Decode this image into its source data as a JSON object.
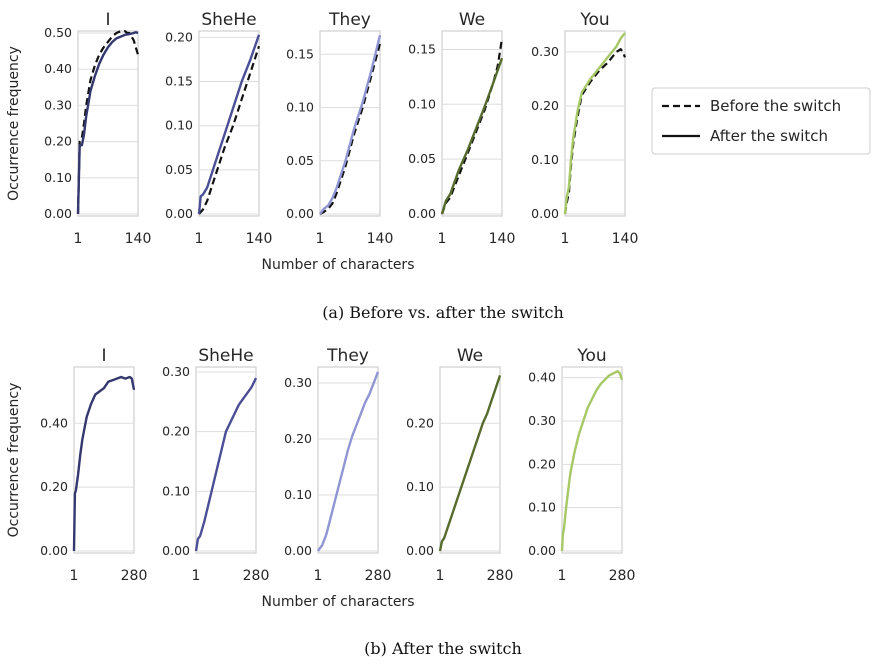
{
  "figure": {
    "captions": [
      "(a) Before vs. after the switch",
      "(b) After the switch"
    ]
  },
  "legend": {
    "entries": [
      {
        "label": "Before the switch",
        "style": "dashed"
      },
      {
        "label": "After the switch",
        "style": "solid"
      }
    ]
  },
  "colors": {
    "I": "#34386f",
    "SheHe": "#4a4f96",
    "They": "#8f96d3",
    "We": "#566b2d",
    "You": "#a6c866",
    "before": "#111111"
  },
  "chart_data": [
    {
      "type": "line",
      "subfigure": "a",
      "ylabel": "Occurrence frequency",
      "xlabel": "Number of characters",
      "grid": "horizontal",
      "legend": "right",
      "panels": [
        {
          "title": "I",
          "xlim": [
            1,
            140
          ],
          "ylim": [
            0,
            0.5
          ],
          "xticks": [
            "1",
            "140"
          ],
          "yticks": [
            "0.00",
            "0.10",
            "0.20",
            "0.30",
            "0.40",
            "0.50"
          ],
          "series": [
            {
              "name": "Before the switch",
              "x": [
                1,
                5,
                10,
                15,
                20,
                30,
                40,
                50,
                60,
                70,
                80,
                90,
                100,
                110,
                115,
                120,
                125,
                130,
                135,
                140
              ],
              "y": [
                0.0,
                0.2,
                0.21,
                0.25,
                0.3,
                0.37,
                0.41,
                0.44,
                0.46,
                0.475,
                0.49,
                0.5,
                0.505,
                0.505,
                0.5,
                0.5,
                0.49,
                0.48,
                0.46,
                0.44
              ]
            },
            {
              "name": "After the switch",
              "x": [
                1,
                5,
                10,
                15,
                20,
                30,
                40,
                50,
                60,
                70,
                80,
                90,
                100,
                110,
                120,
                130,
                135,
                140
              ],
              "y": [
                0.0,
                0.19,
                0.19,
                0.22,
                0.27,
                0.34,
                0.38,
                0.415,
                0.44,
                0.46,
                0.475,
                0.485,
                0.49,
                0.495,
                0.497,
                0.5,
                0.502,
                0.5
              ]
            }
          ]
        },
        {
          "title": "SheHe",
          "xlim": [
            1,
            140
          ],
          "ylim": [
            0,
            0.205
          ],
          "xticks": [
            "1",
            "140"
          ],
          "yticks": [
            "0.00",
            "0.05",
            "0.10",
            "0.15",
            "0.20"
          ],
          "series": [
            {
              "name": "Before the switch",
              "x": [
                1,
                10,
                20,
                30,
                40,
                60,
                80,
                100,
                120,
                140
              ],
              "y": [
                0.0,
                0.005,
                0.015,
                0.03,
                0.045,
                0.075,
                0.1,
                0.13,
                0.16,
                0.19
              ]
            },
            {
              "name": "After the switch",
              "x": [
                1,
                5,
                10,
                20,
                30,
                40,
                60,
                80,
                100,
                120,
                140
              ],
              "y": [
                0.0,
                0.02,
                0.022,
                0.03,
                0.045,
                0.06,
                0.09,
                0.12,
                0.15,
                0.175,
                0.203
              ]
            }
          ]
        },
        {
          "title": "They",
          "xlim": [
            1,
            140
          ],
          "ylim": [
            0,
            0.17
          ],
          "xticks": [
            "1",
            "140"
          ],
          "yticks": [
            "0.00",
            "0.05",
            "0.10",
            "0.15"
          ],
          "series": [
            {
              "name": "Before the switch",
              "x": [
                1,
                10,
                20,
                30,
                40,
                60,
                80,
                100,
                120,
                140
              ],
              "y": [
                0.0,
                0.002,
                0.005,
                0.01,
                0.02,
                0.045,
                0.075,
                0.1,
                0.13,
                0.16
              ]
            },
            {
              "name": "After the switch",
              "x": [
                1,
                10,
                20,
                30,
                40,
                60,
                80,
                100,
                120,
                140
              ],
              "y": [
                0.0,
                0.005,
                0.008,
                0.015,
                0.025,
                0.05,
                0.08,
                0.105,
                0.135,
                0.168
              ]
            }
          ]
        },
        {
          "title": "We",
          "xlim": [
            1,
            140
          ],
          "ylim": [
            0,
            0.165
          ],
          "xticks": [
            "1",
            "140"
          ],
          "yticks": [
            "0.00",
            "0.05",
            "0.10",
            "0.15"
          ],
          "series": [
            {
              "name": "Before the switch",
              "x": [
                1,
                10,
                20,
                40,
                60,
                80,
                100,
                120,
                130,
                140
              ],
              "y": [
                0.0,
                0.01,
                0.015,
                0.035,
                0.055,
                0.075,
                0.095,
                0.12,
                0.135,
                0.16
              ]
            },
            {
              "name": "After the switch",
              "x": [
                1,
                10,
                20,
                40,
                60,
                80,
                100,
                120,
                140
              ],
              "y": [
                0.0,
                0.012,
                0.018,
                0.04,
                0.058,
                0.078,
                0.098,
                0.12,
                0.142
              ]
            }
          ]
        },
        {
          "title": "You",
          "xlim": [
            1,
            140
          ],
          "ylim": [
            0,
            0.335
          ],
          "xticks": [
            "1",
            "140"
          ],
          "yticks": [
            "0.00",
            "0.10",
            "0.20",
            "0.30"
          ],
          "series": [
            {
              "name": "Before the switch",
              "x": [
                1,
                5,
                10,
                15,
                20,
                30,
                40,
                60,
                80,
                100,
                120,
                130,
                135,
                140
              ],
              "y": [
                0.0,
                0.02,
                0.04,
                0.09,
                0.13,
                0.18,
                0.22,
                0.245,
                0.265,
                0.28,
                0.3,
                0.305,
                0.3,
                0.29
              ]
            },
            {
              "name": "After the switch",
              "x": [
                1,
                5,
                10,
                15,
                20,
                30,
                40,
                60,
                80,
                100,
                120,
                130,
                140
              ],
              "y": [
                0.0,
                0.03,
                0.05,
                0.1,
                0.14,
                0.19,
                0.225,
                0.25,
                0.27,
                0.29,
                0.31,
                0.325,
                0.335
              ]
            }
          ]
        }
      ]
    },
    {
      "type": "line",
      "subfigure": "b",
      "ylabel": "Occurrence frequency",
      "xlabel": "Number of characters",
      "grid": "horizontal",
      "panels": [
        {
          "title": "I",
          "xlim": [
            1,
            280
          ],
          "ylim": [
            0,
            0.57
          ],
          "xticks": [
            "1",
            "280"
          ],
          "yticks": [
            "0.00",
            "0.20",
            "0.40"
          ],
          "series": [
            {
              "name": "After the switch",
              "x": [
                1,
                5,
                10,
                20,
                30,
                40,
                60,
                80,
                100,
                120,
                140,
                160,
                180,
                200,
                220,
                240,
                260,
                270,
                280
              ],
              "y": [
                0.0,
                0.18,
                0.19,
                0.24,
                0.3,
                0.35,
                0.42,
                0.46,
                0.49,
                0.5,
                0.51,
                0.53,
                0.535,
                0.54,
                0.545,
                0.54,
                0.545,
                0.54,
                0.505
              ]
            }
          ]
        },
        {
          "title": "SheHe",
          "xlim": [
            1,
            280
          ],
          "ylim": [
            0,
            0.305
          ],
          "xticks": [
            "1",
            "280"
          ],
          "yticks": [
            "0.00",
            "0.10",
            "0.20",
            "0.30"
          ],
          "series": [
            {
              "name": "After the switch",
              "x": [
                1,
                10,
                20,
                40,
                60,
                80,
                100,
                120,
                140,
                160,
                180,
                200,
                220,
                240,
                260,
                280
              ],
              "y": [
                0.0,
                0.02,
                0.025,
                0.05,
                0.08,
                0.11,
                0.14,
                0.17,
                0.2,
                0.215,
                0.23,
                0.245,
                0.255,
                0.265,
                0.275,
                0.29
              ]
            }
          ]
        },
        {
          "title": "They",
          "xlim": [
            1,
            280
          ],
          "ylim": [
            0,
            0.325
          ],
          "xticks": [
            "1",
            "280"
          ],
          "yticks": [
            "0.00",
            "0.10",
            "0.20",
            "0.30"
          ],
          "series": [
            {
              "name": "After the switch",
              "x": [
                1,
                10,
                20,
                40,
                60,
                80,
                100,
                120,
                140,
                160,
                180,
                200,
                220,
                240,
                260,
                280
              ],
              "y": [
                0.0,
                0.005,
                0.01,
                0.03,
                0.06,
                0.09,
                0.12,
                0.15,
                0.18,
                0.205,
                0.225,
                0.245,
                0.265,
                0.28,
                0.3,
                0.32
              ]
            }
          ]
        },
        {
          "title": "We",
          "xlim": [
            1,
            280
          ],
          "ylim": [
            0,
            0.285
          ],
          "xticks": [
            "1",
            "280"
          ],
          "yticks": [
            "0.00",
            "0.10",
            "0.20"
          ],
          "series": [
            {
              "name": "After the switch",
              "x": [
                1,
                10,
                20,
                40,
                60,
                80,
                100,
                120,
                140,
                160,
                180,
                200,
                220,
                240,
                260,
                280
              ],
              "y": [
                0.0,
                0.015,
                0.02,
                0.04,
                0.06,
                0.08,
                0.1,
                0.12,
                0.14,
                0.16,
                0.18,
                0.2,
                0.215,
                0.235,
                0.255,
                0.275
              ]
            }
          ]
        },
        {
          "title": "You",
          "xlim": [
            1,
            280
          ],
          "ylim": [
            0,
            0.42
          ],
          "xticks": [
            "1",
            "280"
          ],
          "yticks": [
            "0.00",
            "0.10",
            "0.20",
            "0.30",
            "0.40"
          ],
          "series": [
            {
              "name": "After the switch",
              "x": [
                1,
                5,
                10,
                20,
                30,
                40,
                60,
                80,
                100,
                120,
                140,
                160,
                180,
                200,
                220,
                240,
                260,
                270,
                280
              ],
              "y": [
                0.0,
                0.04,
                0.05,
                0.1,
                0.14,
                0.18,
                0.23,
                0.27,
                0.3,
                0.33,
                0.35,
                0.37,
                0.385,
                0.395,
                0.405,
                0.41,
                0.415,
                0.41,
                0.395
              ]
            }
          ]
        }
      ]
    }
  ]
}
